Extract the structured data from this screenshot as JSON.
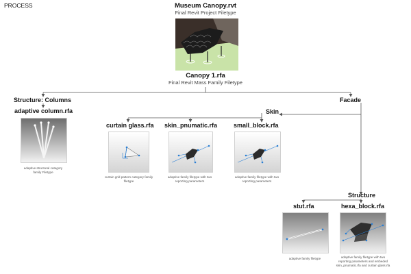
{
  "heading": "PROCESS",
  "project": {
    "title": "Museum Canopy.rvt",
    "subtitle": "Final Revit Project Filetype"
  },
  "mass": {
    "title": "Canopy 1.rfa",
    "subtitle": "Final Revit Mass Family Filetype"
  },
  "structure_columns": {
    "title": "Structure: Columns"
  },
  "facade": {
    "title": "Facade"
  },
  "skin": {
    "title": "Skin"
  },
  "structure": {
    "title": "Structure"
  },
  "families": {
    "adaptive_column": {
      "title": "adaptive column.rfa",
      "caption": [
        "adaptive structural category",
        "family Filetype"
      ]
    },
    "curtain_glass": {
      "title": "curtain glass.rfa",
      "caption": [
        "curtain grid pattern category family",
        "filetype"
      ]
    },
    "skin_pnumatic": {
      "title": "skin_pnumatic.rfa",
      "caption": [
        "adaptive family filetype with two",
        "reporting parameters"
      ]
    },
    "small_block": {
      "title": "small_block.rfa",
      "caption": [
        "adaptive family filetype with two",
        "reporting parameters"
      ]
    },
    "stut": {
      "title": "stut.rfa",
      "caption": [
        "adaptive family filetype"
      ]
    },
    "hexa_block": {
      "title": "hexa_block.rfa",
      "caption": [
        "adaptive family filetype with two",
        "reporting parameters and embeded",
        "skin_pnumatic.rfa and curtain glass.rfa"
      ]
    }
  },
  "colors": {
    "line": "#555555",
    "accent": "#2a7fd4",
    "canopy_green": "#c9e3a8"
  }
}
